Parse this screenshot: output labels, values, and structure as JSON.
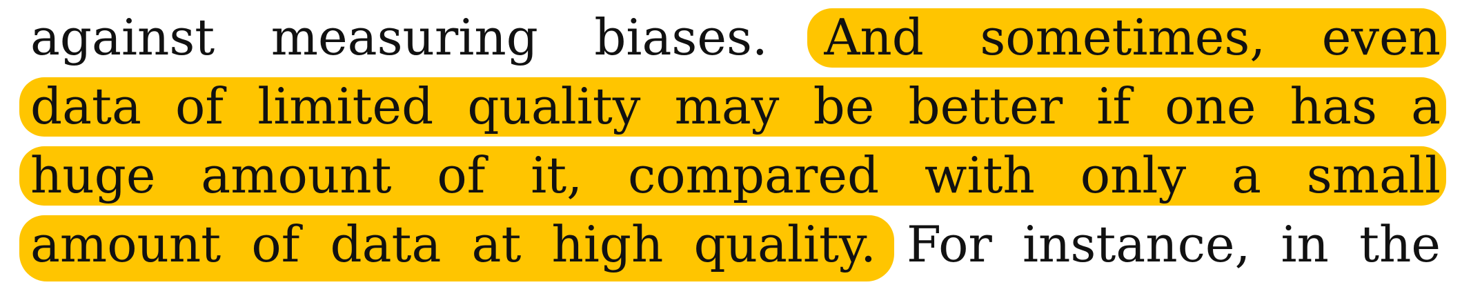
{
  "document": {
    "lines": [
      "against measuring biases. And sometimes, even",
      "data of limited quality may be better if one has a",
      "huge amount of it, compared with only a small",
      "amount of data at high quality. For instance, in the"
    ],
    "highlight_color": "#ffc500",
    "text_color": "#111111",
    "background_color": "#ffffff",
    "highlighted_sentence": "And sometimes, even data of limited quality may be better if one has a huge amount of it, compared with only a small amount of data at high quality."
  }
}
